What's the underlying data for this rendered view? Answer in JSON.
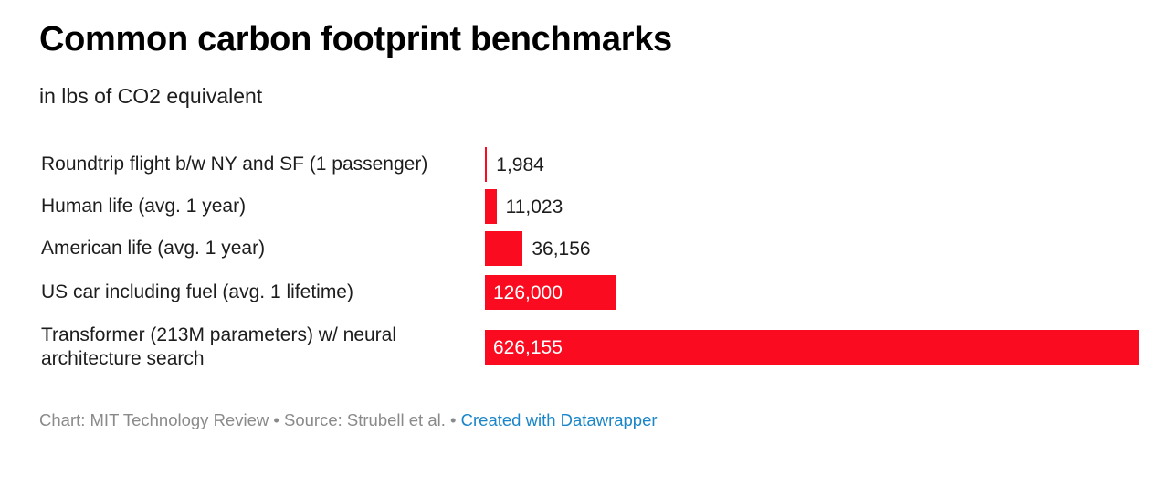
{
  "title": "Common carbon footprint benchmarks",
  "subtitle": "in lbs of CO2 equivalent",
  "footer": {
    "chart_credit": "Chart: MIT Technology Review",
    "separator": "•",
    "source": "Source: Strubell et al.",
    "link": "Created with Datawrapper"
  },
  "colors": {
    "bar": "#fb0b1f",
    "label_inside": "#ffffff",
    "label_outside": "#1d1d1d",
    "link": "#1a86c8",
    "muted": "#8a8a8a"
  },
  "chart_data": {
    "type": "bar",
    "orientation": "horizontal",
    "title": "Common carbon footprint benchmarks",
    "subtitle": "in lbs of CO2 equivalent",
    "categories": [
      "Roundtrip flight b/w NY and SF (1 passenger)",
      "Human life (avg. 1 year)",
      "American life (avg. 1 year)",
      "US car including fuel (avg. 1 lifetime)",
      "Transformer (213M parameters) w/ neural architecture search"
    ],
    "values": [
      1984,
      11023,
      36156,
      126000,
      626155
    ],
    "value_labels": [
      "1,984",
      "11,023",
      "36,156",
      "126,000",
      "626,155"
    ],
    "xlim": [
      0,
      626155
    ],
    "grid": false,
    "legend": "none"
  }
}
